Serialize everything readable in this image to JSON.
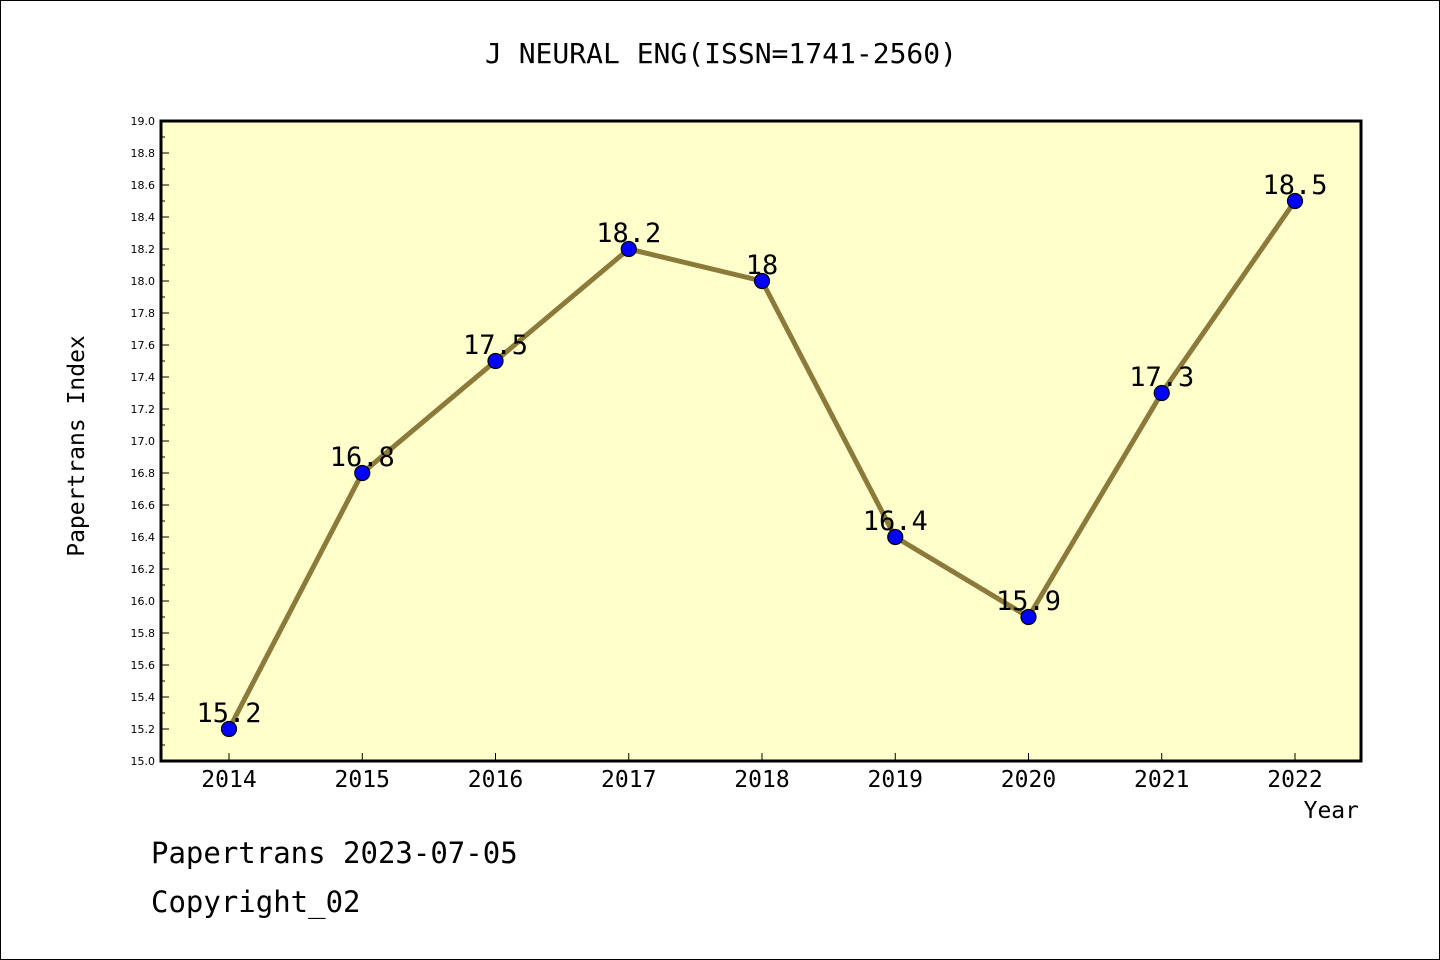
{
  "chart_data": {
    "type": "line",
    "title": "J NEURAL ENG(ISSN=1741-2560)",
    "xlabel": "Year",
    "ylabel": "Papertrans Index",
    "categories": [
      "2014",
      "2015",
      "2016",
      "2017",
      "2018",
      "2019",
      "2020",
      "2021",
      "2022"
    ],
    "values": [
      15.2,
      16.8,
      17.5,
      18.2,
      18.0,
      16.4,
      15.9,
      17.3,
      18.5
    ],
    "data_labels": [
      "15.2",
      "16.8",
      "17.5",
      "18.2",
      "18",
      "16.4",
      "15.9",
      "17.3",
      "18.5"
    ],
    "ylim": [
      15.0,
      19.0
    ],
    "yticks": [
      "15.0",
      "15.2",
      "15.4",
      "15.6",
      "15.8",
      "16.0",
      "16.2",
      "16.4",
      "16.6",
      "16.8",
      "17.0",
      "17.2",
      "17.4",
      "17.6",
      "17.8",
      "18.0",
      "18.2",
      "18.4",
      "18.6",
      "18.8",
      "19.0"
    ],
    "grid": false,
    "colors": {
      "plot_background": "#ffffcc",
      "line": "#8b7a3a",
      "marker": "#0000ff"
    }
  },
  "footer": {
    "line1": "Papertrans 2023-07-05",
    "line2": "Copyright_02"
  }
}
